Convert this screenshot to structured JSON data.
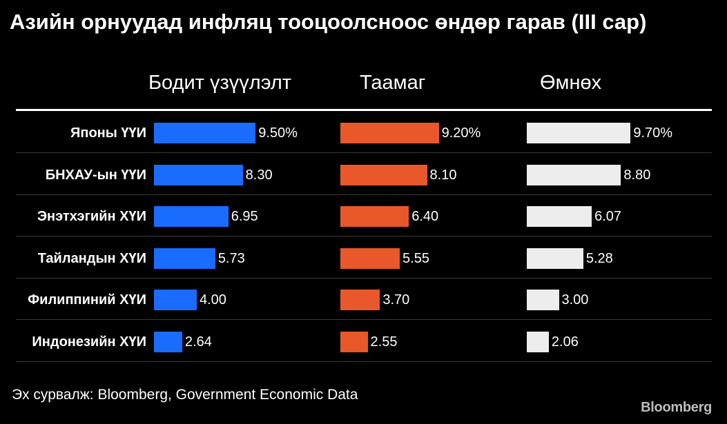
{
  "chart_data": {
    "type": "bar",
    "title": "Азийн орнуудад инфляц тооцоолсноос өндөр гарав (III сар)",
    "categories": [
      "Японы ҮҮИ",
      "БНХАУ-ын ҮҮИ",
      "Энэтхэгийн ХҮИ",
      "Тайландын ХҮИ",
      "Филиппиний ХҮИ",
      "Индонезийн ХҮИ"
    ],
    "series": [
      {
        "name": "Бодит үзүүлэлт",
        "color": "#1a6cff",
        "values": [
          9.5,
          8.3,
          6.95,
          5.73,
          4.0,
          2.64
        ],
        "labels": [
          "9.50%",
          "8.30",
          "6.95",
          "5.73",
          "4.00",
          "2.64"
        ]
      },
      {
        "name": "Таамаг",
        "color": "#e8582b",
        "values": [
          9.2,
          8.1,
          6.4,
          5.55,
          3.7,
          2.55
        ],
        "labels": [
          "9.20%",
          "8.10",
          "6.40",
          "5.55",
          "3.70",
          "2.55"
        ]
      },
      {
        "name": "Өмнөх",
        "color": "#ededed",
        "values": [
          9.7,
          8.8,
          6.07,
          5.28,
          3.0,
          2.06
        ],
        "labels": [
          "9.70%",
          "8.80",
          "6.07",
          "5.28",
          "3.00",
          "2.06"
        ]
      }
    ],
    "xlim": [
      0,
      10
    ],
    "grid": false
  },
  "footer": {
    "source": "Эх сурвалж: Bloomberg, Government Economic Data",
    "brand": "Bloomberg"
  }
}
